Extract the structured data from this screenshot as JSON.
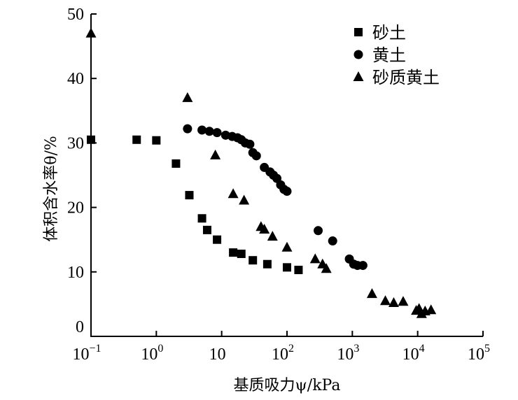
{
  "chart_data": {
    "type": "scatter",
    "x_scale": "log",
    "xlim": [
      0.1,
      100000
    ],
    "ylim": [
      0,
      50
    ],
    "grid": false,
    "legend_position": "top-right",
    "xlabel": "基质吸力ψ/kPa",
    "ylabel": "体积含水率θ/%",
    "x_ticks": [
      {
        "value": 0.1,
        "base": "10",
        "exp": "−1"
      },
      {
        "value": 1,
        "base": "10",
        "exp": "0"
      },
      {
        "value": 10,
        "base": "10",
        "exp": ""
      },
      {
        "value": 100,
        "base": "10",
        "exp": "2"
      },
      {
        "value": 1000,
        "base": "10",
        "exp": "3"
      },
      {
        "value": 10000,
        "base": "10",
        "exp": "4"
      },
      {
        "value": 100000,
        "base": "10",
        "exp": "5"
      }
    ],
    "y_ticks": [
      {
        "value": 0,
        "label": "0"
      },
      {
        "value": 10,
        "label": "10"
      },
      {
        "value": 20,
        "label": "20"
      },
      {
        "value": 30,
        "label": "30"
      },
      {
        "value": 40,
        "label": "40"
      },
      {
        "value": 50,
        "label": "50"
      }
    ],
    "series": [
      {
        "name": "砂土",
        "marker": "square",
        "points": [
          [
            0.1,
            30.5
          ],
          [
            0.5,
            30.5
          ],
          [
            1,
            30.4
          ],
          [
            2,
            26.8
          ],
          [
            3.2,
            21.9
          ],
          [
            5,
            18.3
          ],
          [
            6,
            16.5
          ],
          [
            8.5,
            15.0
          ],
          [
            15,
            13.0
          ],
          [
            20,
            12.8
          ],
          [
            30,
            11.8
          ],
          [
            50,
            11.2
          ],
          [
            100,
            10.7
          ],
          [
            150,
            10.3
          ]
        ]
      },
      {
        "name": "黄土",
        "marker": "circle",
        "points": [
          [
            3,
            32.2
          ],
          [
            5,
            32.0
          ],
          [
            6.5,
            31.8
          ],
          [
            8.5,
            31.6
          ],
          [
            11.5,
            31.2
          ],
          [
            14.5,
            31.0
          ],
          [
            17.5,
            30.8
          ],
          [
            20,
            30.5
          ],
          [
            23,
            30.0
          ],
          [
            27,
            29.8
          ],
          [
            30,
            28.5
          ],
          [
            34,
            28.0
          ],
          [
            45,
            26.2
          ],
          [
            55,
            25.5
          ],
          [
            62,
            25.0
          ],
          [
            70,
            24.5
          ],
          [
            80,
            23.5
          ],
          [
            90,
            22.8
          ],
          [
            100,
            22.5
          ],
          [
            300,
            16.4
          ],
          [
            500,
            14.8
          ],
          [
            900,
            12.0
          ],
          [
            1050,
            11.2
          ],
          [
            1200,
            11.0
          ],
          [
            1450,
            11.0
          ]
        ]
      },
      {
        "name": "砂质黄土",
        "marker": "triangle",
        "points": [
          [
            0.1,
            47.0
          ],
          [
            3,
            37.0
          ],
          [
            8,
            28.1
          ],
          [
            15,
            22.1
          ],
          [
            22,
            21.1
          ],
          [
            40,
            17.0
          ],
          [
            45,
            16.6
          ],
          [
            60,
            15.5
          ],
          [
            100,
            13.8
          ],
          [
            270,
            12.0
          ],
          [
            350,
            11.2
          ],
          [
            400,
            10.5
          ],
          [
            2000,
            6.6
          ],
          [
            3200,
            5.5
          ],
          [
            4300,
            5.2
          ],
          [
            6000,
            5.4
          ],
          [
            9500,
            4.0
          ],
          [
            10500,
            4.3
          ],
          [
            11500,
            3.5
          ],
          [
            13000,
            3.9
          ],
          [
            16000,
            4.1
          ]
        ]
      }
    ]
  }
}
